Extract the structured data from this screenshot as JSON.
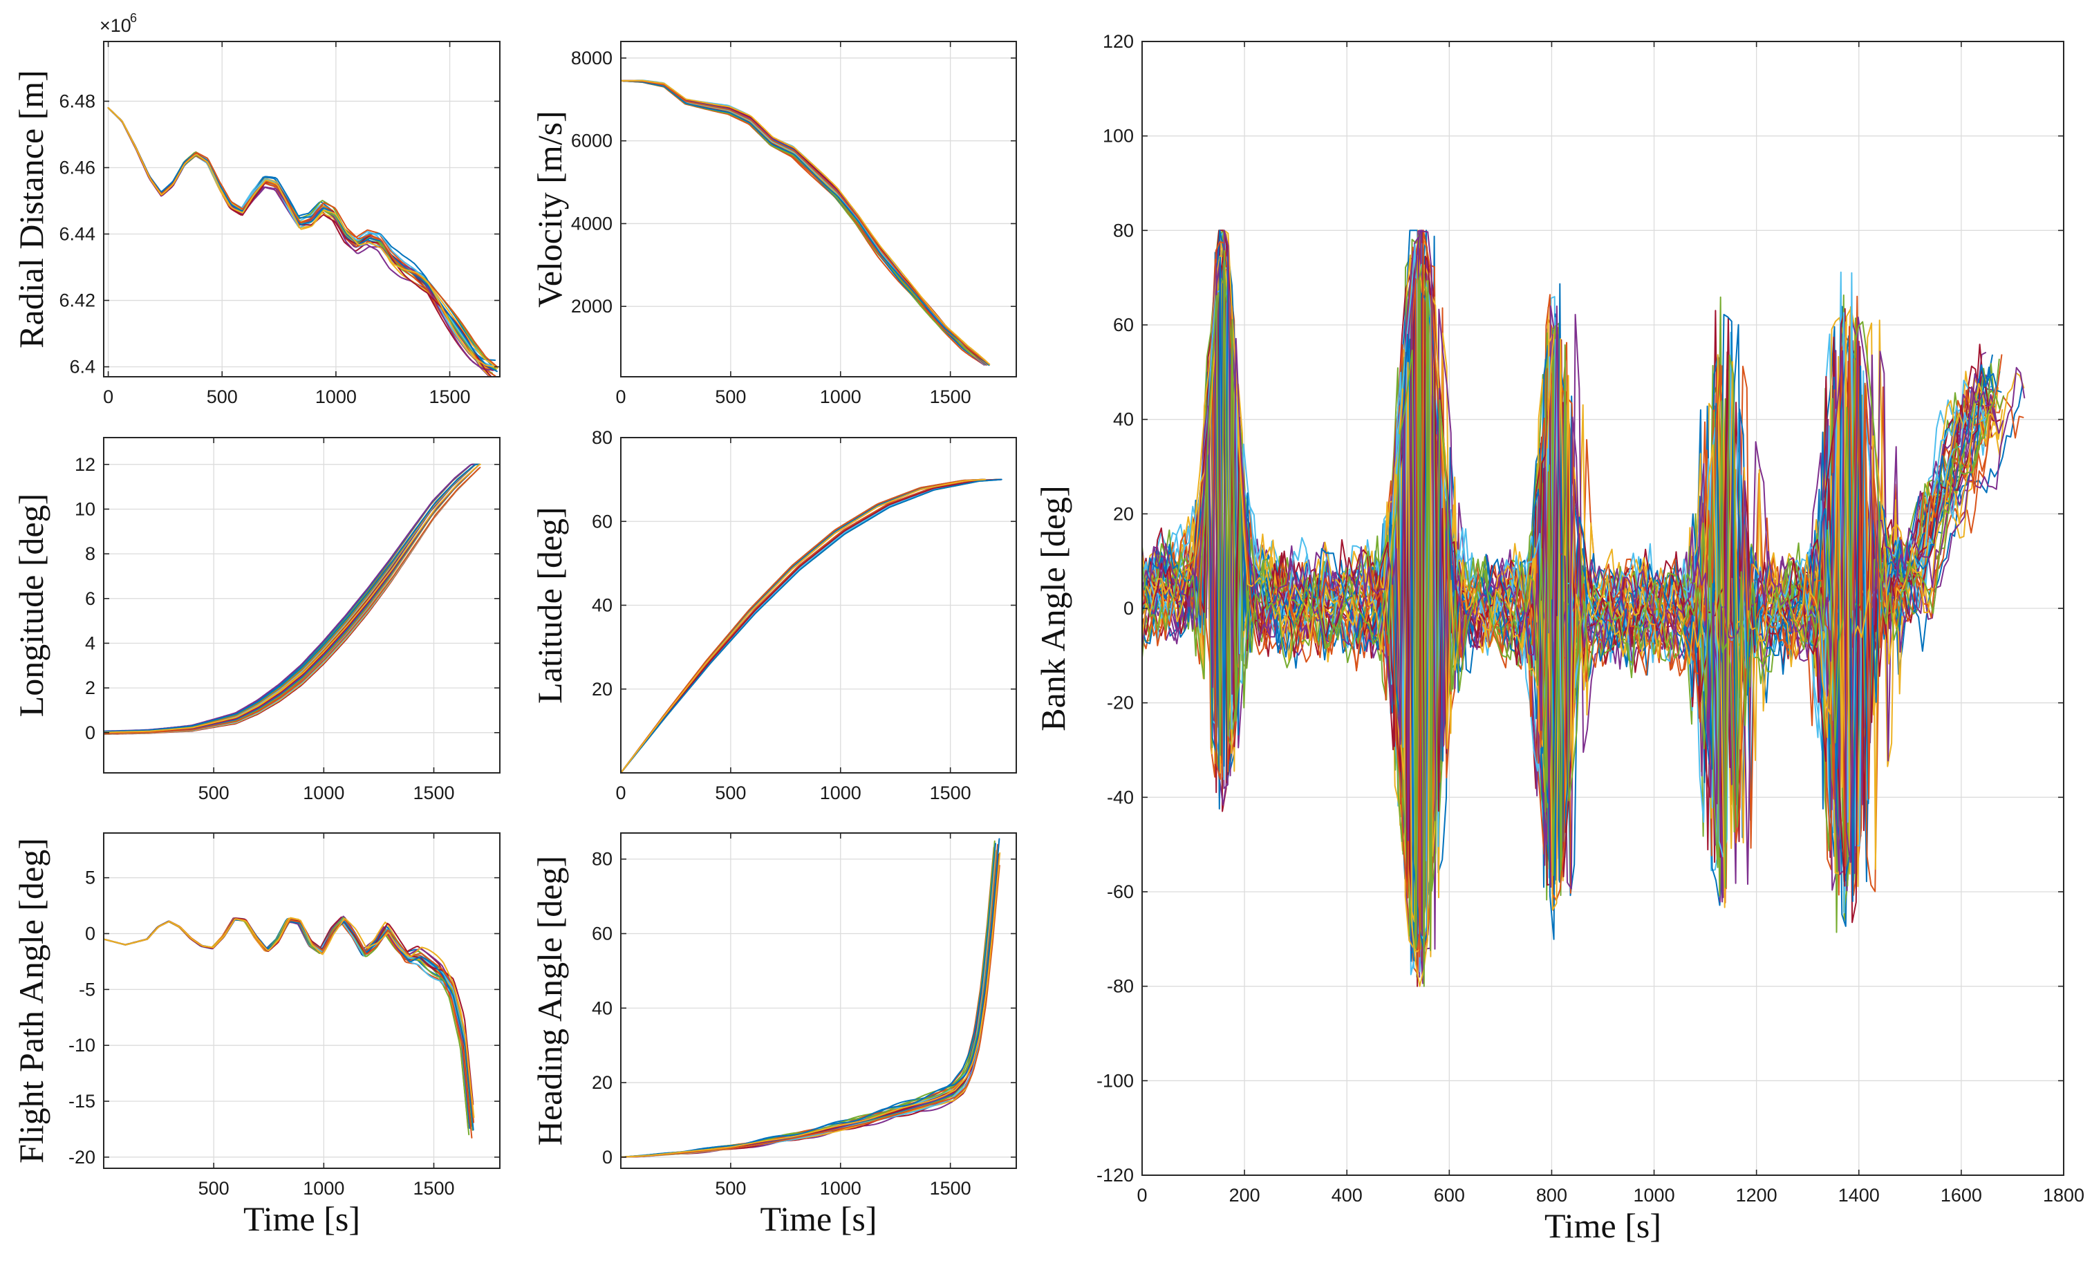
{
  "palette": [
    "#0072BD",
    "#D95319",
    "#EDB120",
    "#7E2F8E",
    "#77AC30",
    "#4DBEEE",
    "#A2142F"
  ],
  "chart_data": [
    {
      "id": "radial",
      "type": "line",
      "ylabel": "Radial Distance [m]",
      "xlabel": "",
      "xlim": [
        -20,
        1720
      ],
      "ylim": [
        6.397,
        6.498
      ],
      "xticks": [
        0,
        500,
        1000,
        1500
      ],
      "yticks": [
        6.4,
        6.42,
        6.44,
        6.46,
        6.48
      ],
      "ytick_labels": [
        "6.4",
        "6.42",
        "6.44",
        "6.46",
        "6.48"
      ],
      "y_exponent_base": "×10",
      "y_exponent_power": "6",
      "nominal": {
        "x": [
          0,
          60,
          120,
          180,
          230,
          280,
          330,
          380,
          430,
          480,
          530,
          580,
          630,
          680,
          730,
          780,
          830,
          880,
          930,
          980,
          1030,
          1080,
          1130,
          1180,
          1230,
          1280,
          1330,
          1380,
          1430,
          1480,
          1530,
          1580,
          1630,
          1680
        ],
        "y": [
          6.478,
          6.474,
          6.466,
          6.457,
          6.452,
          6.455,
          6.461,
          6.464,
          6.462,
          6.455,
          6.449,
          6.447,
          6.452,
          6.456,
          6.455,
          6.449,
          6.443,
          6.444,
          6.448,
          6.446,
          6.44,
          6.437,
          6.439,
          6.438,
          6.433,
          6.43,
          6.428,
          6.425,
          6.42,
          6.415,
          6.41,
          6.405,
          6.401,
          6.399
        ]
      },
      "series_count": 24
    },
    {
      "id": "velocity",
      "type": "line",
      "ylabel": "Velocity [m/s]",
      "xlabel": "",
      "xlim": [
        0,
        1800
      ],
      "ylim": [
        300,
        8400
      ],
      "xticks": [
        0,
        500,
        1000,
        1500
      ],
      "yticks": [
        2000,
        4000,
        6000,
        8000
      ],
      "ytick_labels": [
        "2000",
        "4000",
        "6000",
        "8000"
      ],
      "nominal": {
        "x": [
          0,
          100,
          200,
          300,
          400,
          500,
          600,
          700,
          800,
          900,
          1000,
          1100,
          1200,
          1300,
          1400,
          1500,
          1600,
          1700
        ],
        "y": [
          7450,
          7440,
          7350,
          6950,
          6850,
          6750,
          6500,
          6000,
          5750,
          5250,
          4750,
          4100,
          3350,
          2700,
          2100,
          1500,
          1000,
          600
        ]
      },
      "series_count": 24
    },
    {
      "id": "longitude",
      "type": "line",
      "ylabel": "Longitude [deg]",
      "xlabel": "",
      "xlim": [
        0,
        1800
      ],
      "ylim": [
        -1.8,
        13.2
      ],
      "xticks": [
        500,
        1000,
        1500
      ],
      "yticks": [
        0,
        2,
        4,
        6,
        8,
        10,
        12
      ],
      "ytick_labels": [
        "0",
        "2",
        "4",
        "6",
        "8",
        "10",
        "12"
      ],
      "nominal": {
        "x": [
          0,
          200,
          400,
          600,
          700,
          800,
          900,
          1000,
          1100,
          1200,
          1300,
          1400,
          1500,
          1600,
          1700
        ],
        "y": [
          0,
          0.05,
          0.2,
          0.65,
          1.15,
          1.8,
          2.6,
          3.6,
          4.7,
          5.9,
          7.2,
          8.6,
          10.0,
          11.1,
          12.0
        ]
      },
      "series_count": 24
    },
    {
      "id": "latitude",
      "type": "line",
      "ylabel": "Latitude [deg]",
      "xlabel": "",
      "xlim": [
        0,
        1800
      ],
      "ylim": [
        0,
        80
      ],
      "xticks": [
        0,
        500,
        1000,
        1500
      ],
      "yticks": [
        20,
        40,
        60,
        80
      ],
      "ytick_labels": [
        "20",
        "40",
        "60",
        "80"
      ],
      "nominal": {
        "x": [
          0,
          200,
          400,
          600,
          800,
          1000,
          1200,
          1400,
          1600,
          1700
        ],
        "y": [
          0,
          13.5,
          26.5,
          38.5,
          49,
          57.5,
          63.8,
          67.8,
          69.7,
          70
        ]
      },
      "series_count": 24
    },
    {
      "id": "flight_path",
      "type": "line",
      "ylabel": "Flight Path Angle [deg]",
      "xlabel": "Time [s]",
      "xlim": [
        0,
        1800
      ],
      "ylim": [
        -21,
        9
      ],
      "xticks": [
        500,
        1000,
        1500
      ],
      "yticks": [
        -20,
        -15,
        -10,
        -5,
        0,
        5
      ],
      "ytick_labels": [
        "-20",
        "-15",
        "-10",
        "-5",
        "0",
        "5"
      ],
      "nominal": {
        "x": [
          0,
          100,
          200,
          250,
          300,
          350,
          400,
          450,
          500,
          550,
          600,
          650,
          700,
          750,
          800,
          850,
          900,
          950,
          1000,
          1050,
          1100,
          1150,
          1200,
          1250,
          1300,
          1350,
          1400,
          1450,
          1500,
          1550,
          1600,
          1650,
          1690
        ],
        "y": [
          -0.5,
          -1.0,
          -0.5,
          0.6,
          1.1,
          0.6,
          -0.4,
          -1.1,
          -1.3,
          -0.3,
          1.3,
          1.2,
          -0.3,
          -1.5,
          -0.6,
          1.2,
          1.0,
          -0.9,
          -1.6,
          0.2,
          1.3,
          0.0,
          -1.8,
          -1.0,
          0.4,
          -1.0,
          -2.2,
          -2.0,
          -2.8,
          -3.5,
          -5.0,
          -9.0,
          -17.0
        ]
      },
      "series_count": 24
    },
    {
      "id": "heading",
      "type": "line",
      "ylabel": "Heading Angle [deg]",
      "xlabel": "Time [s]",
      "xlim": [
        0,
        1800
      ],
      "ylim": [
        -3,
        87
      ],
      "xticks": [
        500,
        1000,
        1500
      ],
      "yticks": [
        0,
        20,
        40,
        60,
        80
      ],
      "ytick_labels": [
        "0",
        "20",
        "40",
        "60",
        "80"
      ],
      "nominal": {
        "x": [
          0,
          100,
          200,
          300,
          400,
          500,
          600,
          700,
          800,
          900,
          1000,
          1100,
          1200,
          1300,
          1400,
          1450,
          1500,
          1550,
          1580,
          1610,
          1640,
          1670,
          1700
        ],
        "y": [
          0,
          0.3,
          0.8,
          1.3,
          1.9,
          2.6,
          3.5,
          4.5,
          5.6,
          6.8,
          8.2,
          9.7,
          11.3,
          13.0,
          14.8,
          15.8,
          17.0,
          20.0,
          24.0,
          31.0,
          43.0,
          60.0,
          80.0
        ]
      },
      "series_count": 24
    },
    {
      "id": "bank",
      "type": "line",
      "ylabel": "Bank Angle [deg]",
      "xlabel": "Time [s]",
      "xlim": [
        0,
        1800
      ],
      "ylim": [
        -120,
        120
      ],
      "xticks": [
        0,
        200,
        400,
        600,
        800,
        1000,
        1200,
        1400,
        1600,
        1800
      ],
      "yticks": [
        -120,
        -100,
        -80,
        -60,
        -40,
        -20,
        0,
        20,
        40,
        60,
        80,
        100,
        120
      ],
      "ytick_labels": [
        "-120",
        "-100",
        "-80",
        "-60",
        "-40",
        "-20",
        "0",
        "20",
        "40",
        "60",
        "80",
        "100",
        "120"
      ],
      "nominal": {
        "x": [
          0,
          100,
          150,
          200,
          250,
          300,
          400,
          500,
          600,
          800,
          1000,
          1200,
          1400,
          1500,
          1550,
          1600,
          1650,
          1690
        ],
        "y": [
          2,
          6,
          8,
          4,
          2,
          1,
          1,
          1,
          1,
          0,
          -1,
          -1,
          1,
          5,
          12,
          28,
          40,
          45
        ]
      },
      "series_count": 40
    }
  ]
}
